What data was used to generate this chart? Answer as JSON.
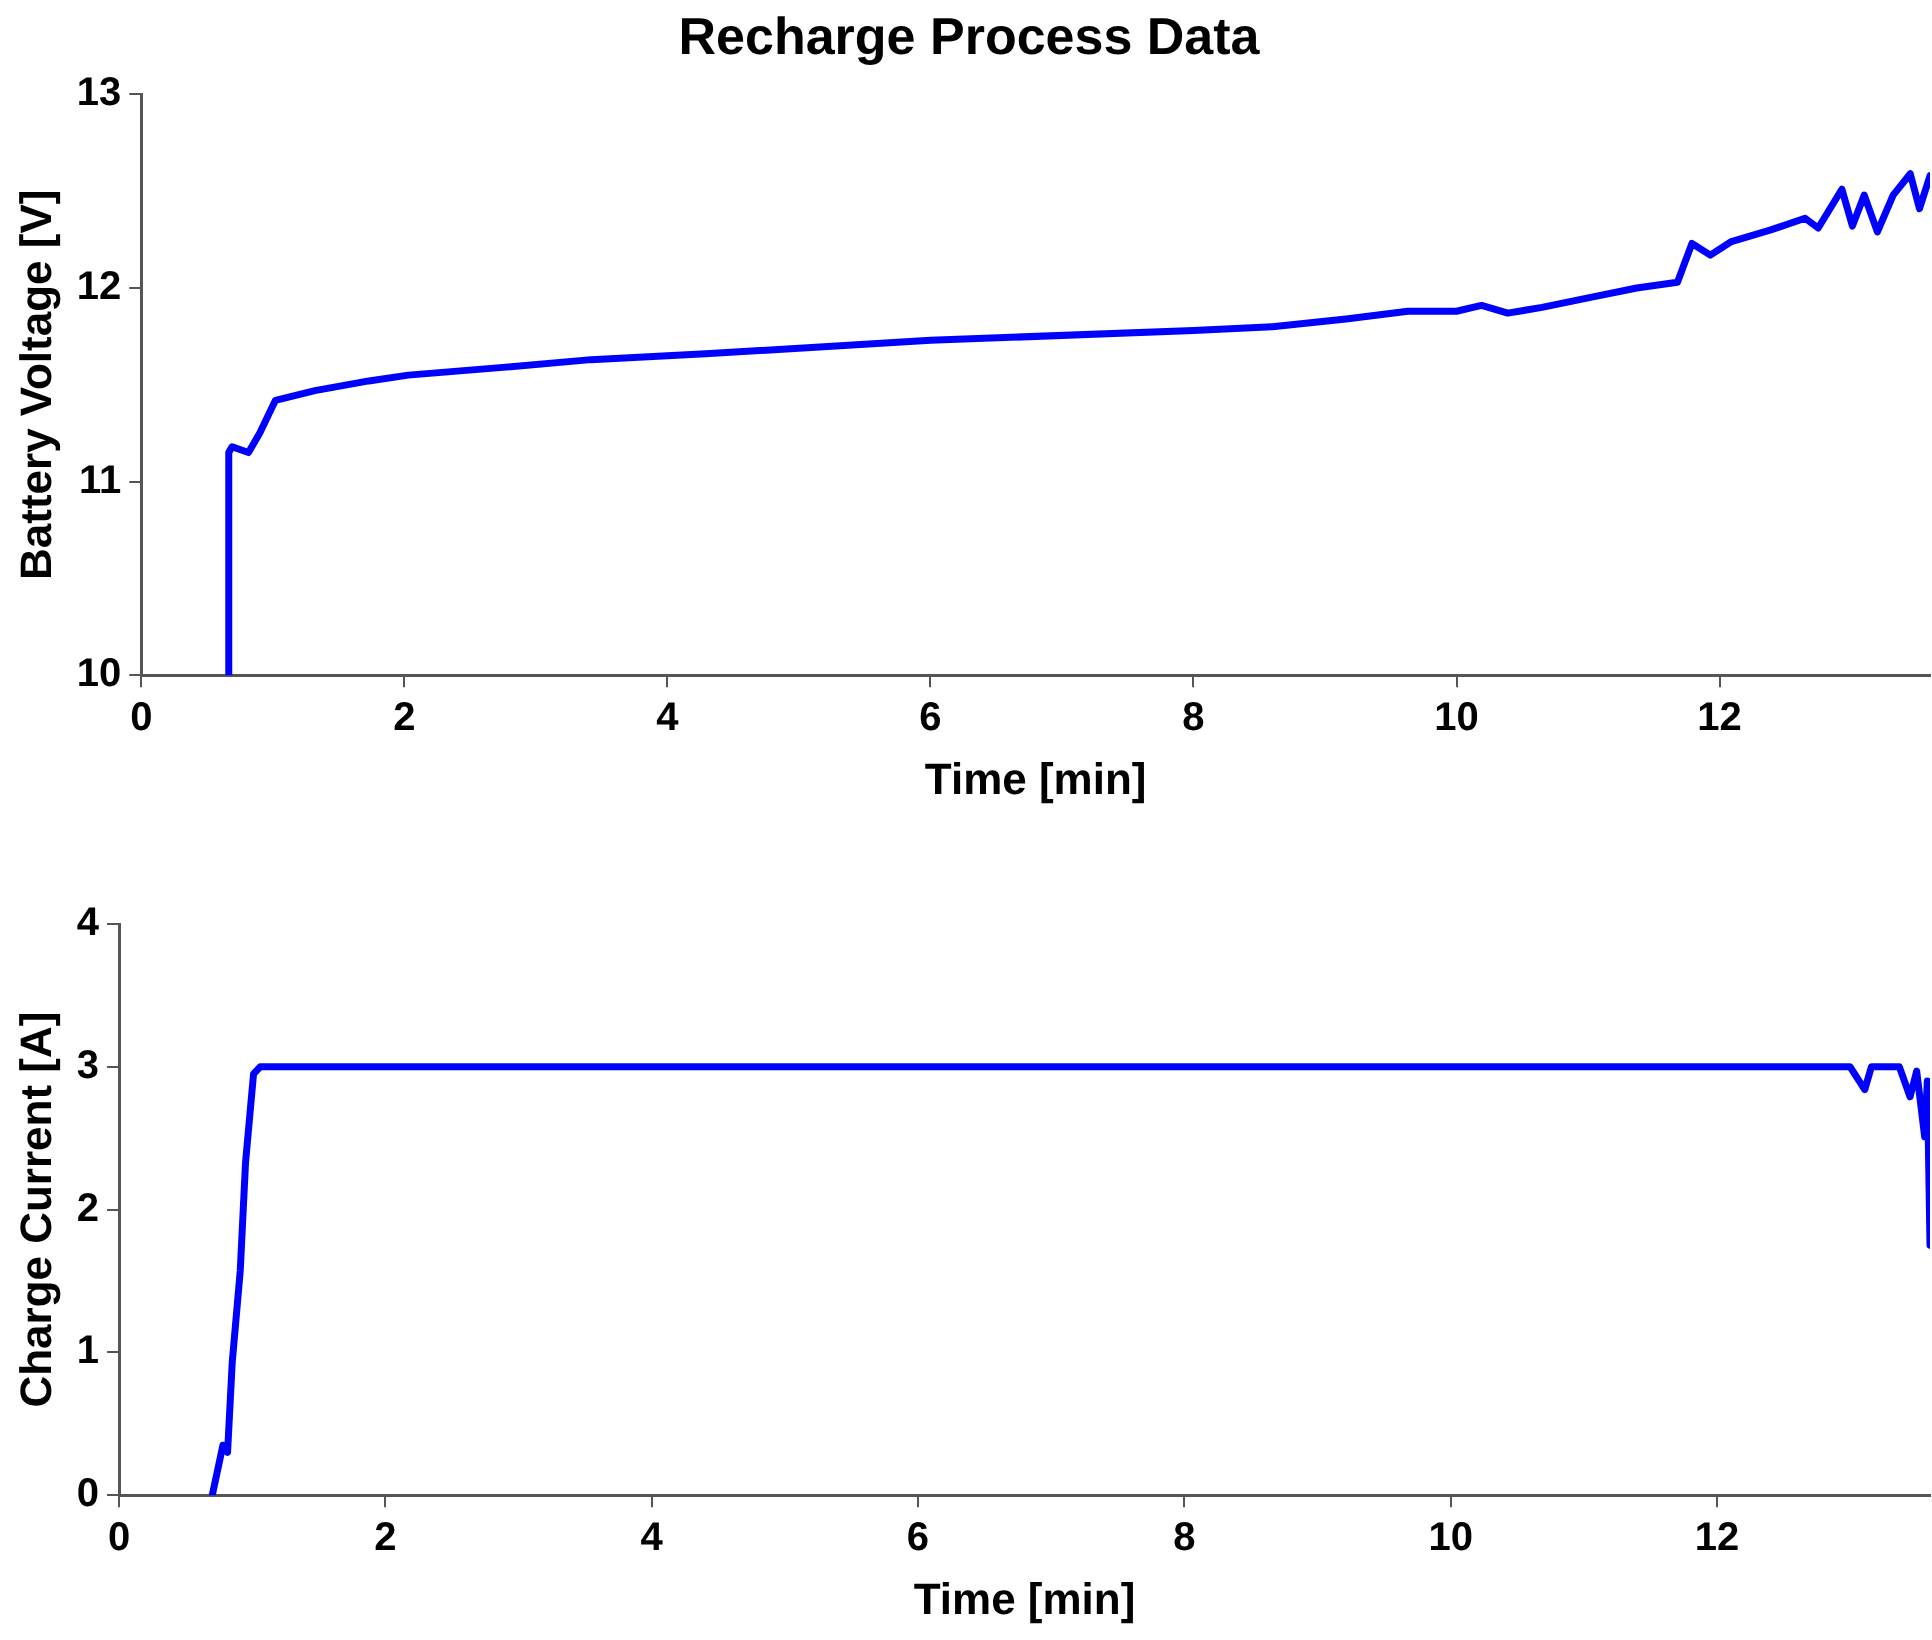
{
  "chart_data": [
    {
      "type": "line",
      "title": "Recharge Process Data",
      "xlabel": "Time [min]",
      "ylabel": "Battery Voltage [V]",
      "xlim": [
        0,
        13.6
      ],
      "xticks": [
        0,
        2,
        4,
        6,
        8,
        10,
        12
      ],
      "ylim": [
        10,
        13
      ],
      "yticks": [
        10,
        11,
        12,
        13
      ],
      "grid": false,
      "legend": false,
      "series": [
        {
          "color": "#0000ff",
          "x": [
            0.665,
            0.665,
            0.69,
            0.815,
            0.9,
            1.02,
            1.32,
            1.73,
            2.03,
            2.75,
            3.42,
            4.29,
            6.0,
            8.0,
            8.6,
            9.16,
            9.63,
            10.0,
            10.19,
            10.39,
            10.65,
            11.01,
            11.37,
            11.68,
            11.79,
            11.93,
            12.09,
            12.39,
            12.65,
            12.75,
            12.93,
            13.01,
            13.1,
            13.2,
            13.32,
            13.45,
            13.52,
            13.6
          ],
          "values": [
            10,
            11.15,
            11.18,
            11.15,
            11.25,
            11.42,
            11.47,
            11.52,
            11.55,
            11.59,
            11.63,
            11.66,
            11.73,
            11.78,
            11.8,
            11.84,
            11.88,
            11.88,
            11.91,
            11.87,
            11.9,
            11.95,
            12.0,
            12.03,
            12.23,
            12.17,
            12.24,
            12.3,
            12.36,
            12.31,
            12.51,
            12.32,
            12.48,
            12.29,
            12.48,
            12.59,
            12.41,
            12.58
          ]
        }
      ]
    },
    {
      "type": "line",
      "xlabel": "Time [min]",
      "ylabel": "Charge Current [A]",
      "xlim": [
        0,
        13.6
      ],
      "xticks": [
        0,
        2,
        4,
        6,
        8,
        10,
        12
      ],
      "ylim": [
        0,
        4
      ],
      "yticks": [
        0,
        1,
        2,
        3,
        4
      ],
      "grid": false,
      "legend": false,
      "series": [
        {
          "color": "#0000ff",
          "x": [
            0.7,
            0.78,
            0.815,
            0.85,
            0.91,
            0.95,
            1.01,
            1.06,
            4.0,
            8.0,
            12.0,
            13.0,
            13.11,
            13.16,
            13.37,
            13.45,
            13.5,
            13.56,
            13.58,
            13.6
          ],
          "values": [
            0,
            0.35,
            0.3,
            0.93,
            1.57,
            2.33,
            2.95,
            3.0,
            3.0,
            3.0,
            3.0,
            3.0,
            2.84,
            3.0,
            3.0,
            2.79,
            2.97,
            2.51,
            2.9,
            1.75
          ]
        }
      ]
    }
  ]
}
